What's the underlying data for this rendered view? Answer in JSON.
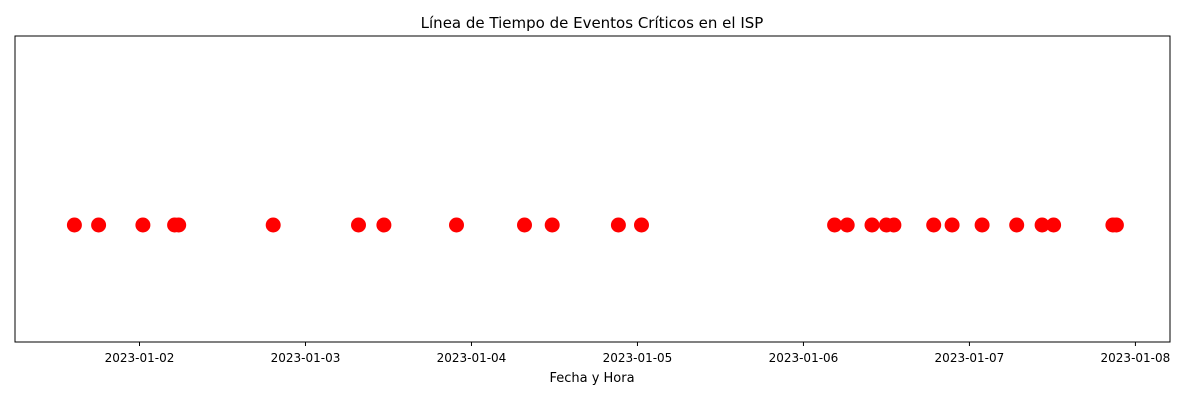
{
  "chart_data": {
    "type": "scatter",
    "title": "Línea de Tiempo de Eventos Críticos en el ISP",
    "xlabel": "Fecha y Hora",
    "ylabel": "",
    "x_axis_type": "datetime",
    "xlim": [
      "2023-01-01 06:00",
      "2023-01-08 05:00"
    ],
    "xticks": [
      "2023-01-02",
      "2023-01-03",
      "2023-01-04",
      "2023-01-05",
      "2023-01-06",
      "2023-01-07",
      "2023-01-08"
    ],
    "y_ticks_visible": false,
    "grid": false,
    "legend": "none",
    "marker_color": "#ff0000",
    "series": [
      {
        "x": [
          "2023-01-01 14:35",
          "2023-01-01 18:05",
          "2023-01-02 00:30",
          "2023-01-02 05:05",
          "2023-01-02 05:40",
          "2023-01-02 19:20",
          "2023-01-03 07:40",
          "2023-01-03 11:20",
          "2023-01-03 21:50",
          "2023-01-04 07:40",
          "2023-01-04 11:40",
          "2023-01-04 21:15",
          "2023-01-05 00:35",
          "2023-01-06 04:30",
          "2023-01-06 06:20",
          "2023-01-06 09:55",
          "2023-01-06 12:00",
          "2023-01-06 13:05",
          "2023-01-06 18:50",
          "2023-01-06 21:30",
          "2023-01-07 01:50",
          "2023-01-07 06:50",
          "2023-01-07 10:30",
          "2023-01-07 12:10",
          "2023-01-07 20:45",
          "2023-01-07 21:15"
        ],
        "y": [
          1,
          1,
          1,
          1,
          1,
          1,
          1,
          1,
          1,
          1,
          1,
          1,
          1,
          1,
          1,
          1,
          1,
          1,
          1,
          1,
          1,
          1,
          1,
          1,
          1,
          1
        ]
      }
    ]
  }
}
